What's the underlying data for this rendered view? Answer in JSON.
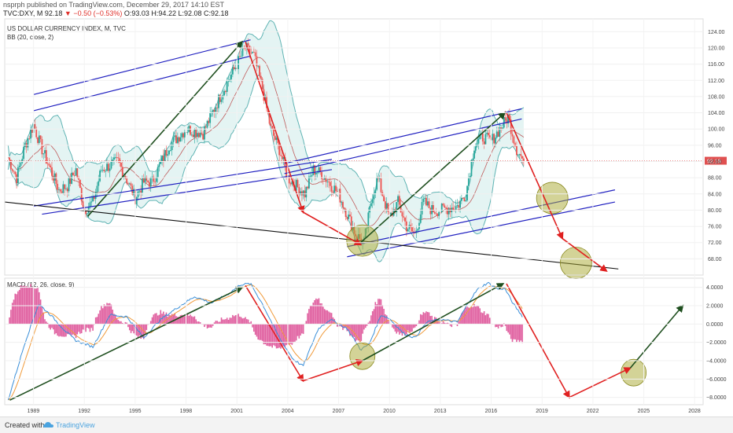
{
  "header": {
    "publisher_line": "nsprph published on TradingView.com, December 29, 2017 14:10 EST",
    "symbol": "TVC:DXY, M",
    "last_price": "92.18",
    "change": "−0.50 (−0.53%)",
    "ohlc": "O:93.03 H:94.22 L:92.08 C:92.18"
  },
  "price_pane": {
    "title": "US DOLLAR CURRENCY INDEX, M, TVC",
    "indicator": "BB (20, close, 2)",
    "current_price_label": "92.18"
  },
  "macd_pane": {
    "title": "MACD (12, 26, close, 9)"
  },
  "footer": {
    "created_with": "Created with",
    "brand": "TradingView"
  },
  "colors": {
    "candle_up": "#26a69a",
    "candle_down": "#ef5350",
    "bollinger_band": "#5fb3b3",
    "bb_fill": "#e4f4f3",
    "bb_basis": "#c05c5c",
    "channel": "#2020c0",
    "trend_up_arrow": "#1f4f1f",
    "trend_down_arrow": "#e02020",
    "support_line": "#111111",
    "macd_line": "#3a8fd8",
    "signal_line": "#f09a3a",
    "histogram": "#e060a0",
    "highlight_ellipse": "#a8a830"
  },
  "chart_data": [
    {
      "type": "line",
      "title": "US DOLLAR CURRENCY INDEX, M, TVC",
      "x_ticks": [
        "1989",
        "1992",
        "1995",
        "1998",
        "2001",
        "2004",
        "2007",
        "2010",
        "2013",
        "2016",
        "2019",
        "2022",
        "2025",
        "2028"
      ],
      "y_ticks": [
        68,
        72,
        76,
        80,
        84,
        88,
        92,
        96,
        100,
        104,
        108,
        112,
        116,
        120,
        124
      ],
      "ylim": [
        64,
        126
      ],
      "xlim": [
        1987.3,
        2028.5
      ],
      "series": [
        {
          "x": [
            1987.5,
            1988.0,
            1988.5,
            1989.0,
            1989.5,
            1990.0,
            1990.5,
            1991.0,
            1991.5,
            1992.0,
            1992.5,
            1993.0,
            1994.0,
            1995.0,
            1995.5,
            1996.0,
            1997.0,
            1998.0,
            1999.0,
            2000.0,
            2001.0,
            2001.5,
            2002.0,
            2002.5,
            2003.0,
            2003.5,
            2004.0,
            2004.5,
            2005.0,
            2005.5,
            2006.0,
            2007.0,
            2008.0,
            2008.5,
            2009.0,
            2009.3,
            2010.0,
            2010.5,
            2011.0,
            2011.5,
            2012.0,
            2012.5,
            2013.0,
            2014.0,
            2014.5,
            2015.0,
            2015.5,
            2016.0,
            2016.5,
            2017.0,
            2017.5,
            2017.9
          ],
          "y": [
            93,
            88,
            96,
            101,
            95,
            90,
            85,
            86,
            90,
            80,
            82,
            90,
            92,
            83,
            87,
            87,
            96,
            100,
            99,
            108,
            116,
            120,
            118,
            110,
            100,
            95,
            88,
            86,
            84,
            90,
            89,
            84,
            74,
            72,
            84,
            88,
            78,
            82,
            76,
            74,
            82,
            80,
            80,
            81,
            84,
            96,
            98,
            97,
            100,
            103,
            95,
            92.18
          ]
        }
      ],
      "bollinger_period": 20,
      "channels": [
        {
          "from": [
            1989.0,
            108.5
          ],
          "to": [
            2001.8,
            122.0
          ]
        },
        {
          "from": [
            1989.0,
            104.5
          ],
          "to": [
            2001.8,
            118.0
          ]
        },
        {
          "from": [
            1989.0,
            81.0
          ],
          "to": [
            2006.6,
            92.5
          ]
        },
        {
          "from": [
            1989.5,
            79.0
          ],
          "to": [
            2006.6,
            90.0
          ]
        },
        {
          "from": [
            2003.8,
            91.5
          ],
          "to": [
            2017.8,
            105.0
          ]
        },
        {
          "from": [
            2003.8,
            89.0
          ],
          "to": [
            2017.8,
            102.5
          ]
        },
        {
          "from": [
            2007.5,
            71.0
          ],
          "to": [
            2023.3,
            85.0
          ]
        },
        {
          "from": [
            2007.5,
            68.5
          ],
          "to": [
            2023.3,
            82.0
          ]
        }
      ],
      "support_line": {
        "from": [
          1987.3,
          82.0
        ],
        "to": [
          2023.5,
          65.5
        ]
      },
      "arrows_up": [
        {
          "from": [
            1992.2,
            78.5
          ],
          "to": [
            2001.3,
            121.5
          ]
        },
        {
          "from": [
            2008.3,
            72.0
          ],
          "to": [
            2016.8,
            104.0
          ]
        }
      ],
      "arrows_down": [
        {
          "from": [
            2001.5,
            121.5
          ],
          "to": [
            2004.9,
            79.5
          ]
        },
        {
          "from": [
            2004.9,
            79.5
          ],
          "to": [
            2008.3,
            71.5
          ]
        },
        {
          "from": [
            2016.9,
            104.0
          ],
          "to": [
            2020.2,
            73.0
          ]
        },
        {
          "from": [
            2020.2,
            73.0
          ],
          "to": [
            2022.8,
            65.0
          ]
        }
      ],
      "highlights": [
        {
          "center": [
            2008.4,
            72.5
          ]
        },
        {
          "center": [
            2019.6,
            83.0
          ]
        },
        {
          "center": [
            2021.0,
            67.0
          ]
        }
      ]
    },
    {
      "type": "line",
      "title": "MACD (12, 26, close, 9)",
      "y_ticks": [
        4.0,
        2.0,
        0.0,
        -2.0,
        -4.0,
        -6.0,
        -8.0
      ],
      "ylim": [
        -8.8,
        5.0
      ],
      "series": [
        {
          "x": [
            1987.5,
            1988.5,
            1989.3,
            1990.0,
            1991.0,
            1991.5,
            1992.5,
            1993.5,
            1994.5,
            1995.5,
            1996.5,
            1997.5,
            1998.5,
            1999.5,
            2000.5,
            2001.2,
            2001.8,
            2002.5,
            2003.5,
            2004.3,
            2004.9,
            2005.8,
            2006.5,
            2007.5,
            2008.3,
            2008.8,
            2009.5,
            2010.0,
            2010.8,
            2011.5,
            2012.2,
            2013.0,
            2014.0,
            2014.7,
            2015.2,
            2015.8,
            2016.4,
            2016.8,
            2017.3,
            2017.9
          ],
          "y": [
            -8.3,
            -2.0,
            2.2,
            1.0,
            -1.0,
            -1.8,
            -2.5,
            1.0,
            0.8,
            -1.5,
            0.5,
            1.8,
            3.0,
            2.3,
            3.3,
            4.3,
            4.4,
            2.2,
            -1.5,
            -3.8,
            -4.6,
            -0.5,
            0.5,
            -0.5,
            -2.8,
            -2.2,
            1.0,
            0.6,
            -1.0,
            -1.5,
            0.2,
            0.5,
            0.2,
            2.5,
            3.8,
            4.5,
            3.8,
            3.9,
            2.2,
            0.7
          ]
        }
      ],
      "arrows_up": [
        {
          "from": [
            1987.6,
            -8.3
          ],
          "to": [
            2001.3,
            4.0
          ]
        },
        {
          "from": [
            2004.9,
            -6.2
          ],
          "to": [
            2008.4,
            -4.0
          ]
        },
        {
          "from": [
            2008.4,
            -4.0
          ],
          "to": [
            2016.7,
            4.4
          ]
        },
        {
          "from": [
            2020.6,
            -8.0
          ],
          "to": [
            2024.2,
            -4.8
          ]
        },
        {
          "from": [
            2024.2,
            -4.8
          ],
          "to": [
            2027.3,
            2.0
          ]
        }
      ],
      "arrows_down": [
        {
          "from": [
            2001.5,
            4.2
          ],
          "to": [
            2004.9,
            -6.2
          ]
        },
        {
          "from": [
            2016.9,
            4.4
          ],
          "to": [
            2020.6,
            -8.0
          ]
        }
      ],
      "highlights": [
        {
          "center": [
            2008.4,
            -3.5
          ]
        },
        {
          "center": [
            2024.4,
            -5.3
          ]
        }
      ]
    }
  ]
}
